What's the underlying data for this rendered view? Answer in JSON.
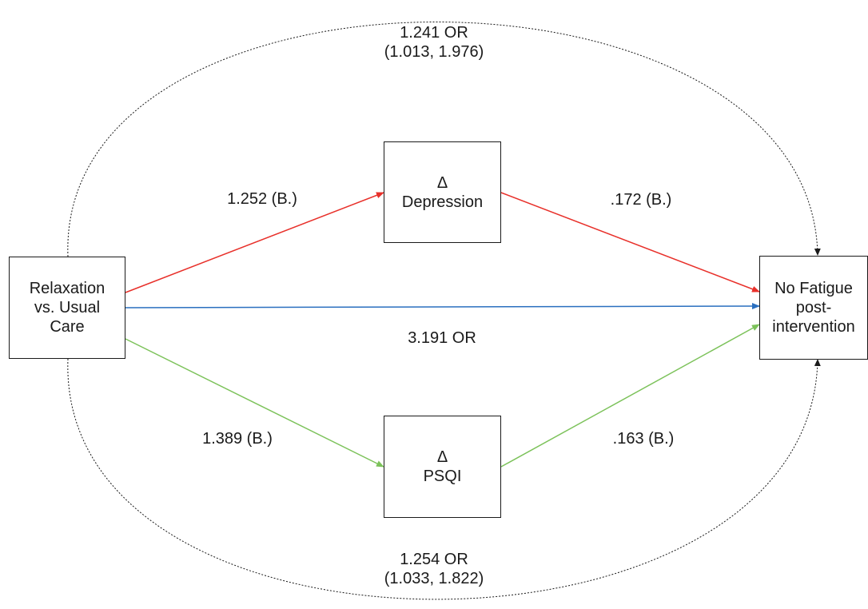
{
  "nodes": {
    "source": {
      "lines": [
        "Relaxation",
        "vs. Usual",
        "Care"
      ]
    },
    "depression": {
      "lines": [
        "Δ",
        "Depression"
      ]
    },
    "psqi": {
      "lines": [
        "Δ",
        "PSQI"
      ]
    },
    "target": {
      "lines": [
        "No Fatigue",
        "post-",
        "intervention"
      ]
    }
  },
  "edges": {
    "source_to_depression": {
      "label": "1.252 (B.)",
      "color": "#e8302a"
    },
    "depression_to_target": {
      "label": ".172 (B.)",
      "color": "#e8302a"
    },
    "source_to_target": {
      "label": "3.191 OR",
      "color": "#2a6fbf"
    },
    "source_to_psqi": {
      "label": "1.389 (B.)",
      "color": "#7cc25a"
    },
    "psqi_to_target": {
      "label": ".163 (B.)",
      "color": "#7cc25a"
    },
    "top_indirect": {
      "lines": [
        "1.241 OR",
        "(1.013, 1.976)"
      ],
      "color": "#1a1a1a"
    },
    "bottom_indirect": {
      "lines": [
        "1.254 OR",
        "(1.033, 1.822)"
      ],
      "color": "#1a1a1a"
    }
  }
}
